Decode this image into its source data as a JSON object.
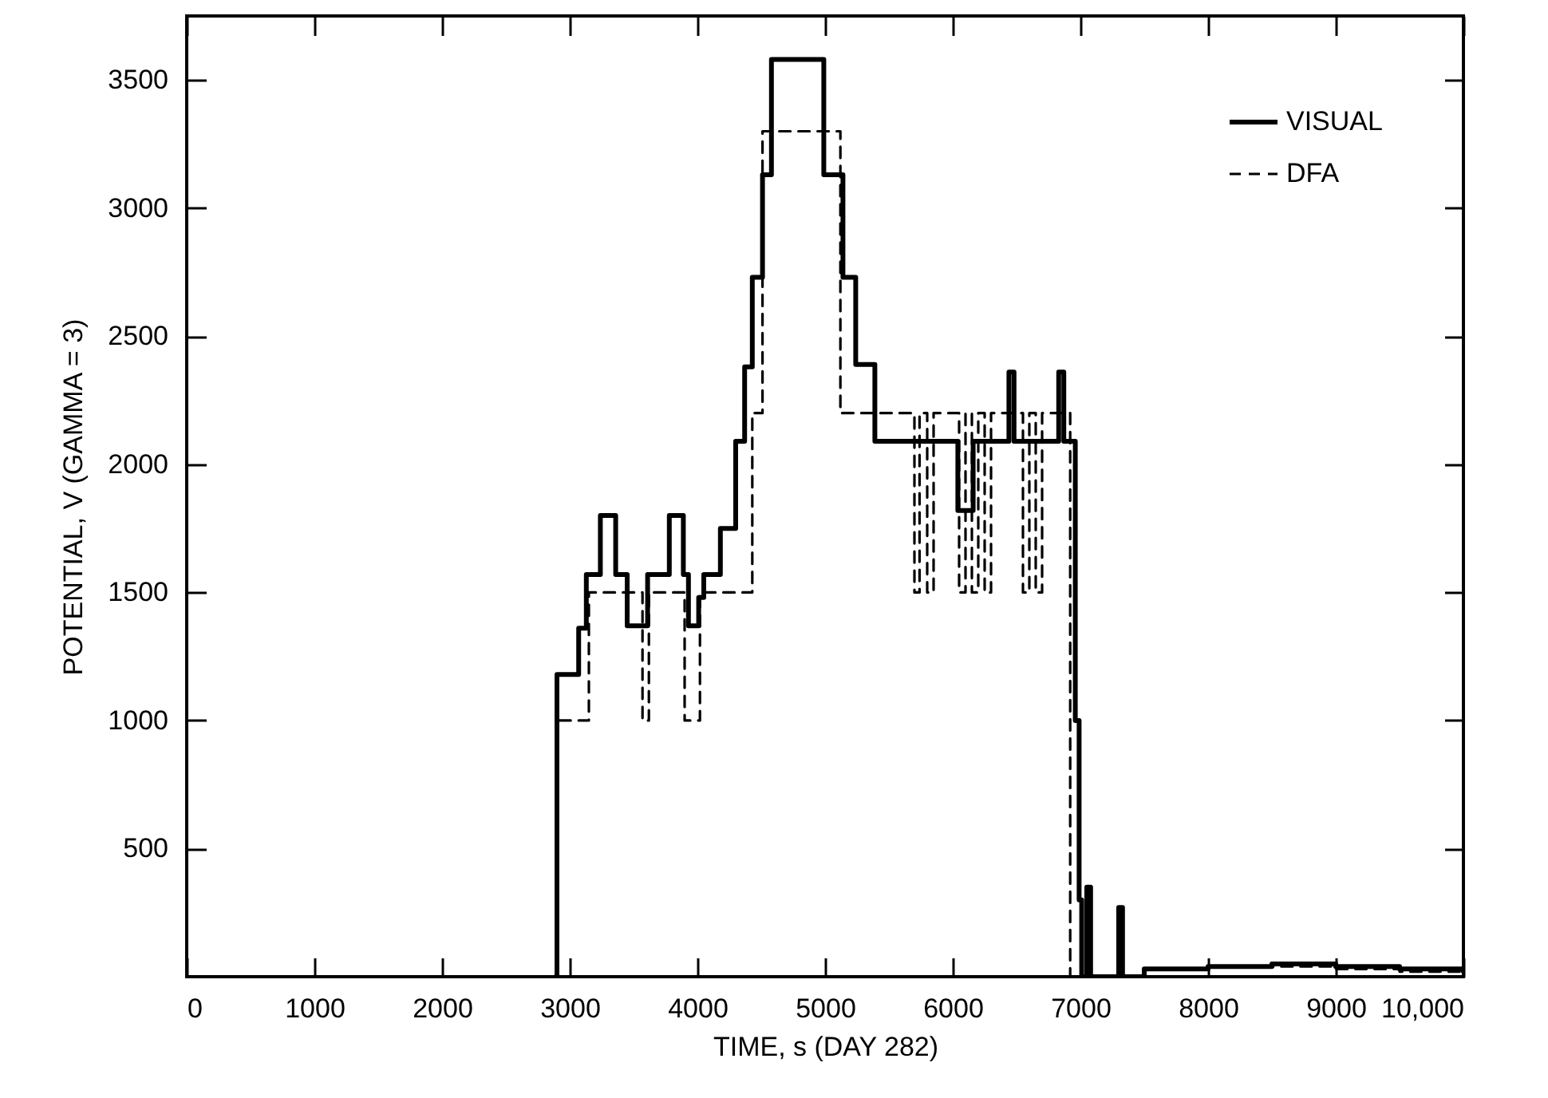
{
  "chart_data": {
    "type": "step",
    "xlabel": "TIME, s (DAY 282)",
    "ylabel": "POTENTIAL, V (GAMMA = 3)",
    "xlim": [
      0,
      10000
    ],
    "ylim": [
      0,
      3750
    ],
    "xticks": [
      0,
      1000,
      2000,
      3000,
      4000,
      5000,
      6000,
      7000,
      8000,
      9000,
      {
        "value": 10000,
        "label": "10,000"
      }
    ],
    "yticks": [
      500,
      1000,
      1500,
      2000,
      2500,
      3000,
      3500
    ],
    "grid": false,
    "legend": "top right",
    "marker": "none",
    "series": [
      {
        "name": "VISUAL",
        "color": "#000000",
        "line_style": "solid",
        "x": [
          2890,
          2900,
          3070,
          3130,
          3240,
          3360,
          3450,
          3610,
          3780,
          3890,
          3930,
          4010,
          4050,
          4180,
          4300,
          4370,
          4430,
          4510,
          4580,
          4990,
          5140,
          5240,
          5390,
          6040,
          6160,
          6400,
          6440,
          6480,
          6800,
          6830,
          6870,
          6960,
          6990,
          7010,
          7050,
          7080,
          7290,
          7300,
          7330,
          7500,
          8000,
          8500,
          9000,
          9500,
          10000
        ],
        "values": [
          0,
          1180,
          1360,
          1570,
          1800,
          1570,
          1370,
          1570,
          1800,
          1570,
          1370,
          1480,
          1570,
          1750,
          2090,
          2380,
          2730,
          3130,
          3580,
          3130,
          2730,
          2390,
          2090,
          1820,
          2090,
          2090,
          2360,
          2090,
          2090,
          2360,
          2090,
          1000,
          300,
          0,
          350,
          0,
          0,
          270,
          0,
          30,
          40,
          50,
          40,
          30,
          20
        ]
      },
      {
        "name": "DFA",
        "color": "#000000",
        "line_style": "dashed",
        "x": [
          2920,
          3150,
          3570,
          3620,
          3900,
          4020,
          4430,
          4510,
          5120,
          5700,
          5740,
          5800,
          5850,
          6050,
          6100,
          6150,
          6200,
          6250,
          6300,
          6550,
          6600,
          6650,
          6700,
          6920,
          7500,
          8000,
          8500,
          9000,
          9500,
          10000
        ],
        "values": [
          1000,
          1500,
          1000,
          1500,
          1000,
          1500,
          2200,
          3300,
          2200,
          1500,
          2200,
          1500,
          2200,
          1500,
          2200,
          1500,
          2200,
          1500,
          2200,
          1500,
          2200,
          1500,
          2200,
          0,
          30,
          40,
          40,
          30,
          20,
          20
        ]
      }
    ]
  }
}
